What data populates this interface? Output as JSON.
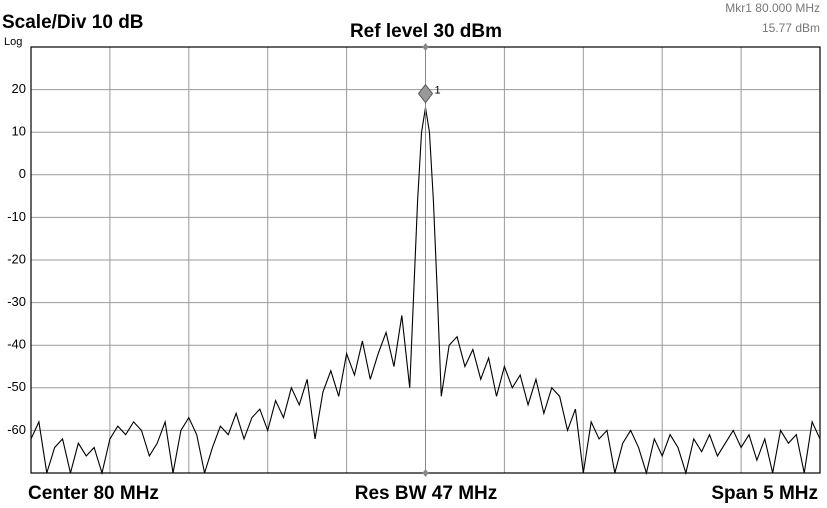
{
  "chart_data": {
    "type": "line",
    "scale_text": "Scale/Div 10 dB",
    "scale_type_text": "Log",
    "ref_text": "Ref level 30 dBm",
    "marker_readout": [
      "Mkr1  80.000 MHz",
      "15.77 dBm"
    ],
    "footer": {
      "left": "Center 80 MHz",
      "center": "Res BW 47 MHz",
      "right": "Span 5 MHz"
    },
    "xlim": [
      77.5,
      82.5
    ],
    "ylim": [
      -70,
      30
    ],
    "yticks": [
      -60,
      -50,
      -40,
      -30,
      -20,
      -10,
      0,
      10,
      20
    ],
    "grid": true,
    "x": [
      77.5,
      77.55,
      77.6,
      77.65,
      77.7,
      77.75,
      77.8,
      77.85,
      77.9,
      77.95,
      78.0,
      78.05,
      78.1,
      78.15,
      78.2,
      78.25,
      78.3,
      78.35,
      78.4,
      78.45,
      78.5,
      78.55,
      78.6,
      78.65,
      78.7,
      78.75,
      78.8,
      78.85,
      78.9,
      78.95,
      79.0,
      79.05,
      79.1,
      79.15,
      79.2,
      79.25,
      79.3,
      79.35,
      79.4,
      79.45,
      79.5,
      79.55,
      79.6,
      79.65,
      79.7,
      79.75,
      79.8,
      79.85,
      79.9,
      79.925,
      79.95,
      79.975,
      80.0,
      80.025,
      80.05,
      80.075,
      80.1,
      80.15,
      80.2,
      80.25,
      80.3,
      80.35,
      80.4,
      80.45,
      80.5,
      80.55,
      80.6,
      80.65,
      80.7,
      80.75,
      80.8,
      80.85,
      80.9,
      80.95,
      81.0,
      81.05,
      81.1,
      81.15,
      81.2,
      81.25,
      81.3,
      81.35,
      81.4,
      81.45,
      81.5,
      81.55,
      81.6,
      81.65,
      81.7,
      81.75,
      81.8,
      81.85,
      81.9,
      81.95,
      82.0,
      82.05,
      82.1,
      82.15,
      82.2,
      82.25,
      82.3,
      82.35,
      82.4,
      82.45,
      82.5
    ],
    "series": [
      {
        "color": "#000000",
        "values": [
          -62,
          -58,
          -70,
          -64,
          -62,
          -70,
          -63,
          -66,
          -64,
          -70,
          -62,
          -59,
          -61,
          -58,
          -60,
          -66,
          -63,
          -58,
          -70,
          -60,
          -57,
          -61,
          -70,
          -64,
          -59,
          -61,
          -56,
          -62,
          -57,
          -55,
          -60,
          -53,
          -57,
          -50,
          -54,
          -48,
          -62,
          -51,
          -46,
          -52,
          -42,
          -47,
          -39,
          -48,
          -42,
          -37,
          -45,
          -33,
          -50,
          -28,
          -6,
          10,
          15.77,
          10,
          -6,
          -28,
          -52,
          -40,
          -38,
          -45,
          -41,
          -48,
          -43,
          -52,
          -45,
          -50,
          -47,
          -54,
          -48,
          -56,
          -50,
          -52,
          -60,
          -55,
          -70,
          -58,
          -62,
          -60,
          -70,
          -63,
          -60,
          -64,
          -70,
          -62,
          -66,
          -61,
          -64,
          -70,
          -62,
          -65,
          -61,
          -66,
          -63,
          -60,
          -64,
          -61,
          -67,
          -62,
          -70,
          -60,
          -63,
          -61,
          -70,
          -58,
          -62
        ]
      }
    ],
    "marker": {
      "x": 80,
      "y": 15.77,
      "label": "1"
    }
  }
}
